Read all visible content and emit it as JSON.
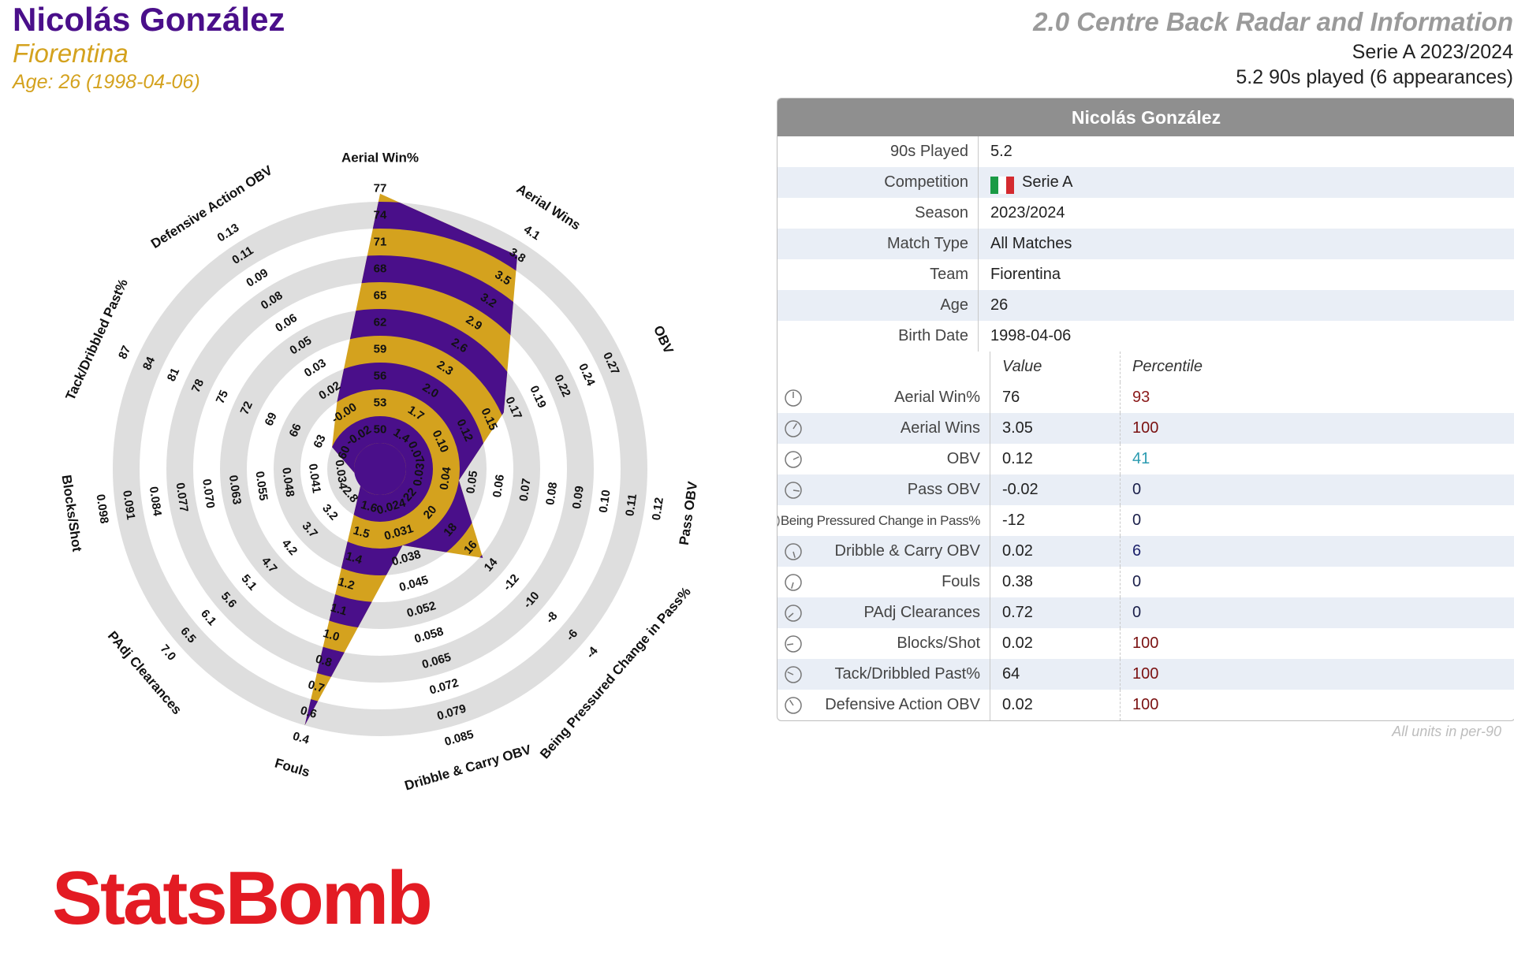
{
  "header": {
    "player_name": "Nicolás González",
    "team": "Fiorentina",
    "age_line": "Age: 26 (1998-04-06)",
    "report_title": "2.0 Centre Back Radar and Information",
    "league_season": "Serie A 2023/2024",
    "played_line": "5.2 90s played (6 appearances)"
  },
  "colors": {
    "purple": "#4a0f8a",
    "gold": "#d4a21e",
    "ring": "#dedede",
    "brand": "#e31b23"
  },
  "chart_data": {
    "type": "radar",
    "title": "",
    "metrics": [
      {
        "name": "Aerial Win%",
        "value": 76,
        "ticks": [
          "50",
          "53",
          "56",
          "59",
          "62",
          "65",
          "68",
          "71",
          "74",
          "77"
        ]
      },
      {
        "name": "Aerial Wins",
        "value": 3.05,
        "ticks": [
          "1.4",
          "1.7",
          "2.0",
          "2.3",
          "2.6",
          "2.9",
          "3.2",
          "3.5",
          "3.8",
          "4.1"
        ]
      },
      {
        "name": "OBV",
        "value": 0.12,
        "ticks": [
          "0.07",
          "0.10",
          "0.12",
          "0.15",
          "0.17",
          "0.19",
          "0.22",
          "0.24",
          "0.27"
        ]
      },
      {
        "name": "Pass OBV",
        "value": -0.02,
        "ticks": [
          "0.03",
          "0.04",
          "0.05",
          "0.06",
          "0.07",
          "0.08",
          "0.09",
          "0.10",
          "0.11",
          "0.12"
        ]
      },
      {
        "name": "Being Pressured Change in Pass%",
        "value": -12,
        "ticks": [
          "22",
          "20",
          "18",
          "16",
          "14",
          "-12",
          "-10",
          "-8",
          "-6",
          "-4"
        ]
      },
      {
        "name": "Dribble & Carry OBV",
        "value": 0.02,
        "ticks": [
          "0.024",
          "0.031",
          "0.038",
          "0.045",
          "0.052",
          "0.058",
          "0.065",
          "0.072",
          "0.079",
          "0.085"
        ]
      },
      {
        "name": "Fouls",
        "value": 0.38,
        "ticks": [
          "1.6",
          "1.5",
          "1.4",
          "1.2",
          "1.1",
          "1.0",
          "0.8",
          "0.7",
          "0.6",
          "0.4"
        ]
      },
      {
        "name": "PAdj Clearances",
        "value": 0.72,
        "ticks": [
          "2.8",
          "3.2",
          "3.7",
          "4.2",
          "4.7",
          "5.1",
          "5.6",
          "6.1",
          "6.5",
          "7.0"
        ]
      },
      {
        "name": "Blocks/Shot",
        "value": 0.02,
        "ticks": [
          "0.034",
          "0.041",
          "0.048",
          "0.055",
          "0.063",
          "0.070",
          "0.077",
          "0.084",
          "0.091",
          "0.098"
        ]
      },
      {
        "name": "Tack/Dribbled Past%",
        "value": 64,
        "ticks": [
          "60",
          "63",
          "66",
          "69",
          "72",
          "75",
          "78",
          "81",
          "84",
          "87"
        ]
      },
      {
        "name": "Defensive Action OBV",
        "value": 0.02,
        "ticks": [
          "-0.02",
          "-0.00",
          "0.02",
          "0.03",
          "0.05",
          "0.06",
          "0.08",
          "0.09",
          "0.11",
          "0.13"
        ]
      }
    ],
    "profile_fraction": [
      0.93,
      0.85,
      0.41,
      0.2,
      0.41,
      0.2,
      0.9,
      0.0,
      0.0,
      0.1,
      0.2
    ],
    "rings": 10
  },
  "table": {
    "title": "Nicolás González",
    "info_rows": [
      {
        "label": "90s Played",
        "value": "5.2"
      },
      {
        "label": "Competition",
        "value": "Serie A",
        "flag": true
      },
      {
        "label": "Season",
        "value": "2023/2024"
      },
      {
        "label": "Match Type",
        "value": "All Matches"
      },
      {
        "label": "Team",
        "value": "Fiorentina"
      },
      {
        "label": "Age",
        "value": "26"
      },
      {
        "label": "Birth Date",
        "value": "1998-04-06"
      }
    ],
    "col_value": "Value",
    "col_percentile": "Percentile",
    "metric_rows": [
      {
        "label": "Aerial Win%",
        "value": "76",
        "pct": "93",
        "pct_color": "#8b1a1a",
        "icon": "clock-gauge-icon",
        "angle": 0
      },
      {
        "label": "Aerial Wins",
        "value": "3.05",
        "pct": "100",
        "pct_color": "#7a1010",
        "icon": "clock-gauge-icon",
        "angle": 33
      },
      {
        "label": "OBV",
        "value": "0.12",
        "pct": "41",
        "pct_color": "#2a9bb0",
        "icon": "clock-gauge-icon",
        "angle": 65
      },
      {
        "label": "Pass OBV",
        "value": "-0.02",
        "pct": "0",
        "pct_color": "#1a1f4a",
        "icon": "clock-gauge-icon",
        "angle": 98
      },
      {
        "label": "Being Pressured Change in Pass%",
        "value": "-12",
        "pct": "0",
        "pct_color": "#1a1f4a",
        "icon": "clock-gauge-icon",
        "angle": 131
      },
      {
        "label": "Dribble & Carry OBV",
        "value": "0.02",
        "pct": "6",
        "pct_color": "#1a1f6a",
        "icon": "clock-gauge-icon",
        "angle": 164
      },
      {
        "label": "Fouls",
        "value": "0.38",
        "pct": "0",
        "pct_color": "#1a1f4a",
        "icon": "clock-gauge-icon",
        "angle": 196
      },
      {
        "label": "PAdj Clearances",
        "value": "0.72",
        "pct": "0",
        "pct_color": "#1a1f4a",
        "icon": "clock-gauge-icon",
        "angle": 229
      },
      {
        "label": "Blocks/Shot",
        "value": "0.02",
        "pct": "100",
        "pct_color": "#7a1010",
        "icon": "clock-gauge-icon",
        "angle": 262
      },
      {
        "label": "Tack/Dribbled Past%",
        "value": "64",
        "pct": "100",
        "pct_color": "#7a1010",
        "icon": "clock-gauge-icon",
        "angle": 295
      },
      {
        "label": "Defensive Action OBV",
        "value": "0.02",
        "pct": "100",
        "pct_color": "#7a1010",
        "icon": "clock-gauge-icon",
        "angle": 327
      }
    ],
    "units_note": "All units in per-90"
  },
  "brand": {
    "logo_text": "StatsBomb"
  }
}
